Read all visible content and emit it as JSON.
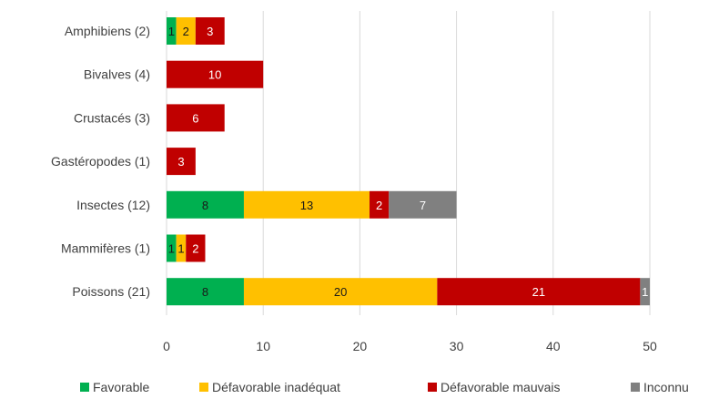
{
  "chart_data": {
    "type": "bar",
    "orientation": "horizontal",
    "stacked": true,
    "categories": [
      "Amphibiens (2)",
      "Bivalves (4)",
      "Crustacés (3)",
      "Gastéropodes (1)",
      "Insectes (12)",
      "Mammifères (1)",
      "Poissons (21)"
    ],
    "series": [
      {
        "name": "Favorable",
        "color": "#00b050",
        "label_color": "#1a1a1a",
        "values": [
          1,
          0,
          0,
          0,
          8,
          1,
          8
        ]
      },
      {
        "name": "Défavorable inadéquat",
        "color": "#ffc000",
        "label_color": "#1a1a1a",
        "values": [
          2,
          0,
          0,
          0,
          13,
          1,
          20
        ]
      },
      {
        "name": "Défavorable mauvais",
        "color": "#c00000",
        "label_color": "#ffffff",
        "values": [
          3,
          10,
          6,
          3,
          2,
          2,
          21
        ]
      },
      {
        "name": "Inconnu",
        "color": "#808080",
        "label_color": "#ffffff",
        "values": [
          0,
          0,
          0,
          0,
          7,
          0,
          1
        ]
      }
    ],
    "xlim": [
      0,
      50
    ],
    "xticks": [
      0,
      10,
      20,
      30,
      40,
      50
    ],
    "grid": "vertical",
    "legend": "bottom",
    "title": "",
    "xlabel": "",
    "ylabel": ""
  }
}
